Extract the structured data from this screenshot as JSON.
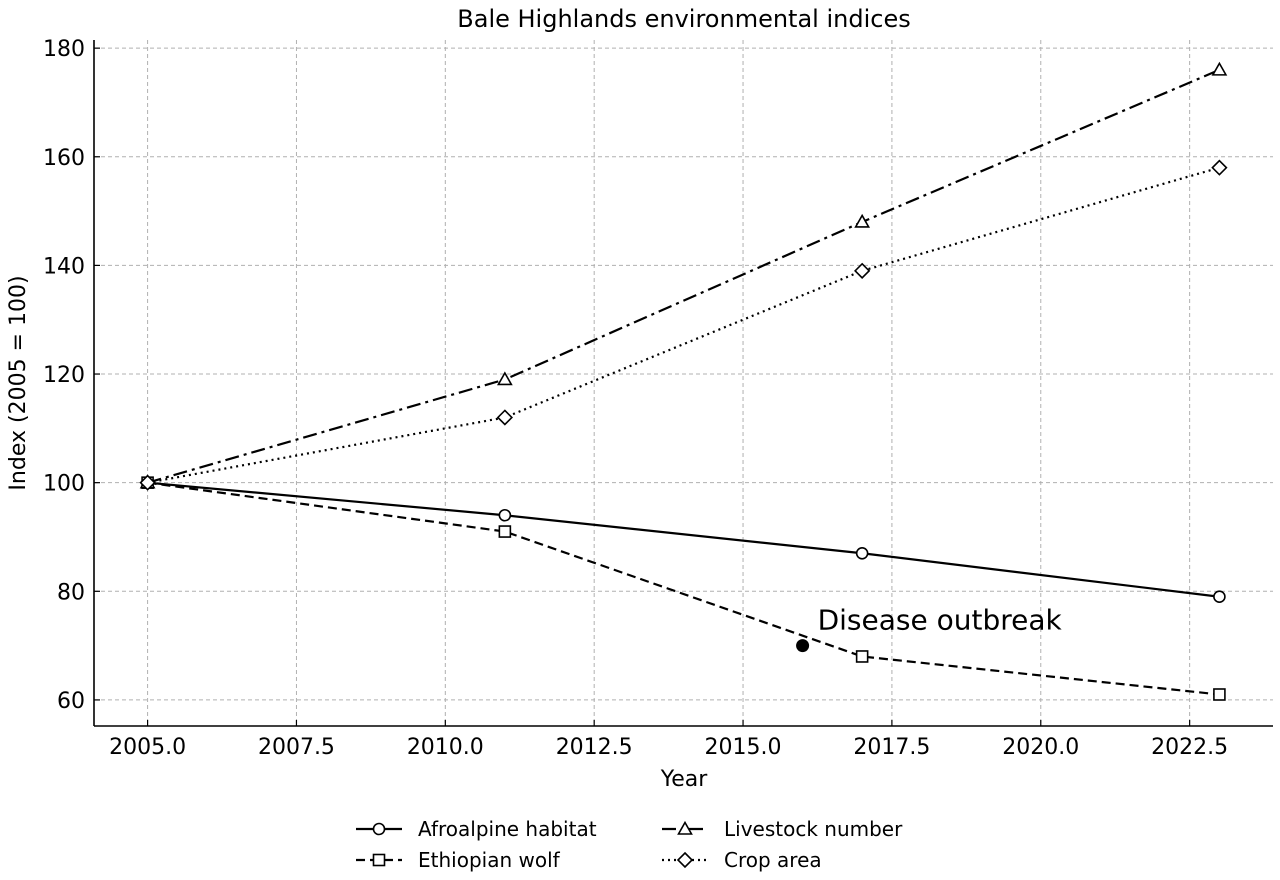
{
  "chart_data": {
    "type": "line",
    "title": "Bale Highlands environmental indices",
    "xlabel": "Year",
    "ylabel": "Index (2005 = 100)",
    "xlim": [
      2004.1,
      2023.9
    ],
    "ylim": [
      55.2,
      181.5
    ],
    "xticks": [
      2005.0,
      2007.5,
      2010.0,
      2012.5,
      2015.0,
      2017.5,
      2020.0,
      2022.5
    ],
    "xtick_labels": [
      "2005.0",
      "2007.5",
      "2010.0",
      "2012.5",
      "2015.0",
      "2017.5",
      "2020.0",
      "2022.5"
    ],
    "yticks": [
      60,
      80,
      100,
      120,
      140,
      160,
      180
    ],
    "ytick_labels": [
      "60",
      "80",
      "100",
      "120",
      "140",
      "160",
      "180"
    ],
    "grid": true,
    "legend_position": "bottom-center",
    "series": [
      {
        "name": "Afroalpine habitat",
        "marker": "circle",
        "dash": "solid",
        "x": [
          2005,
          2011,
          2017,
          2023
        ],
        "y": [
          100,
          94,
          87,
          79
        ]
      },
      {
        "name": "Ethiopian wolf",
        "marker": "square",
        "dash": "dashed",
        "x": [
          2005,
          2011,
          2017,
          2023
        ],
        "y": [
          100,
          91,
          68,
          61
        ]
      },
      {
        "name": "Livestock number",
        "marker": "triangle",
        "dash": "dashdot",
        "x": [
          2005,
          2011,
          2017,
          2023
        ],
        "y": [
          100,
          119,
          148,
          176
        ]
      },
      {
        "name": "Crop area",
        "marker": "diamond",
        "dash": "dotted",
        "x": [
          2005,
          2011,
          2017,
          2023
        ],
        "y": [
          100,
          112,
          139,
          158
        ]
      }
    ],
    "annotations": [
      {
        "text": "Disease outbreak",
        "x": 2016,
        "y": 70
      }
    ]
  }
}
